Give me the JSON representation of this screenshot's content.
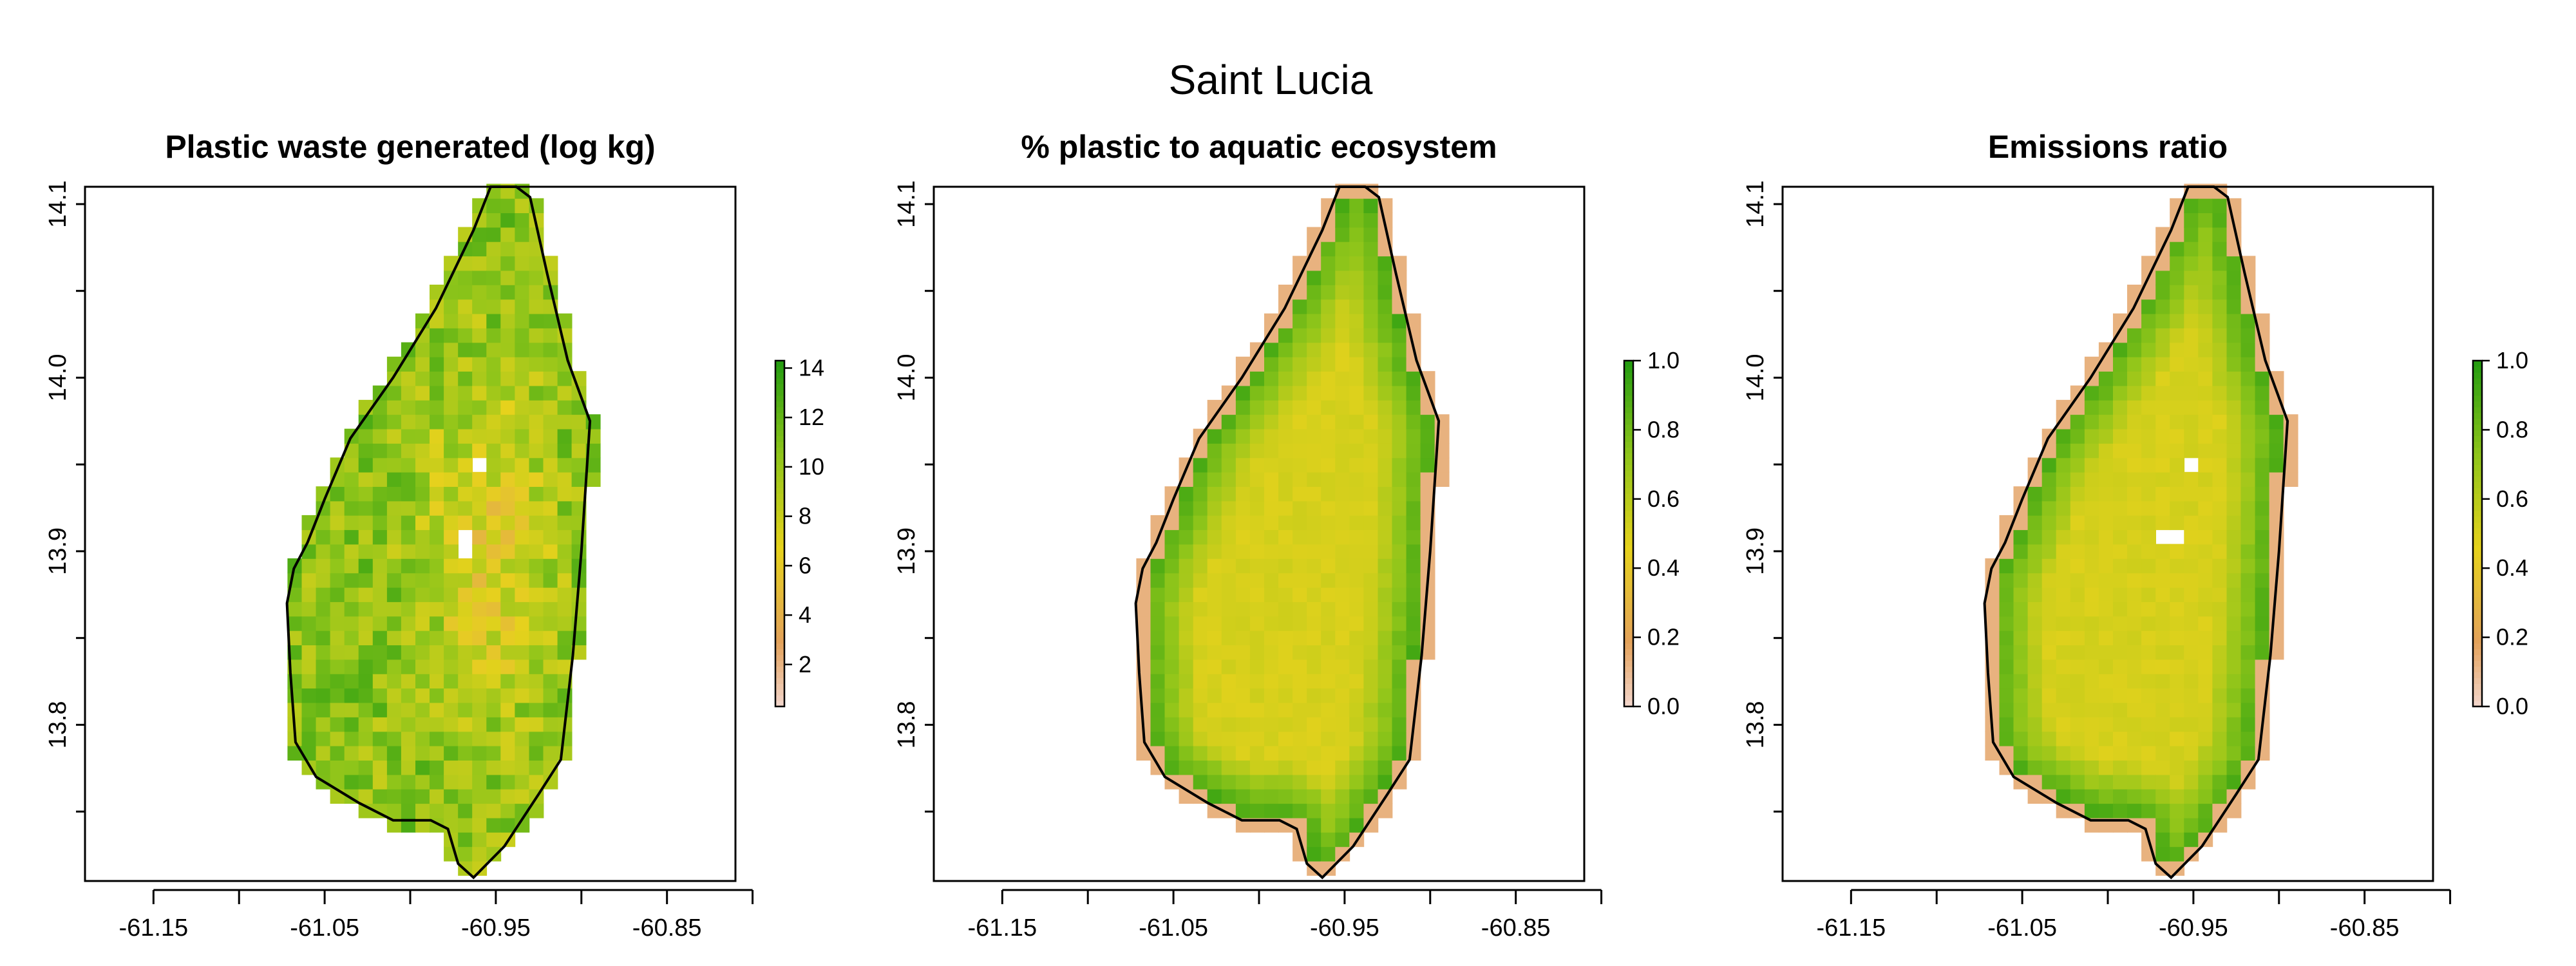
{
  "title": "Saint Lucia",
  "panels": [
    {
      "title": "Plastic waste generated (log kg)",
      "legend": {
        "ticks": [
          "2",
          "4",
          "6",
          "8",
          "10",
          "12",
          "14"
        ],
        "range": [
          0.3,
          14.3
        ]
      }
    },
    {
      "title": "% plastic to aquatic ecosystem",
      "legend": {
        "ticks": [
          "0.0",
          "0.2",
          "0.4",
          "0.6",
          "0.8",
          "1.0"
        ],
        "range": [
          0,
          1
        ]
      }
    },
    {
      "title": "Emissions ratio",
      "legend": {
        "ticks": [
          "0.0",
          "0.2",
          "0.4",
          "0.6",
          "0.8",
          "1.0"
        ],
        "range": [
          0,
          1
        ]
      }
    }
  ],
  "axes": {
    "x_ticks": [
      "-61.15",
      "-61.05",
      "-60.95",
      "-60.85"
    ],
    "y_ticks": [
      "13.8",
      "13.9",
      "14.0",
      "14.1"
    ],
    "xlim": [
      -61.19,
      -60.81
    ],
    "ylim": [
      13.71,
      14.11
    ]
  },
  "colors": {
    "low": "#f2d4c8",
    "mid_low": "#e3a15a",
    "mid": "#e6d21c",
    "mid_high": "#8fc51a",
    "high": "#1f9a10",
    "outline": "#000000"
  }
}
